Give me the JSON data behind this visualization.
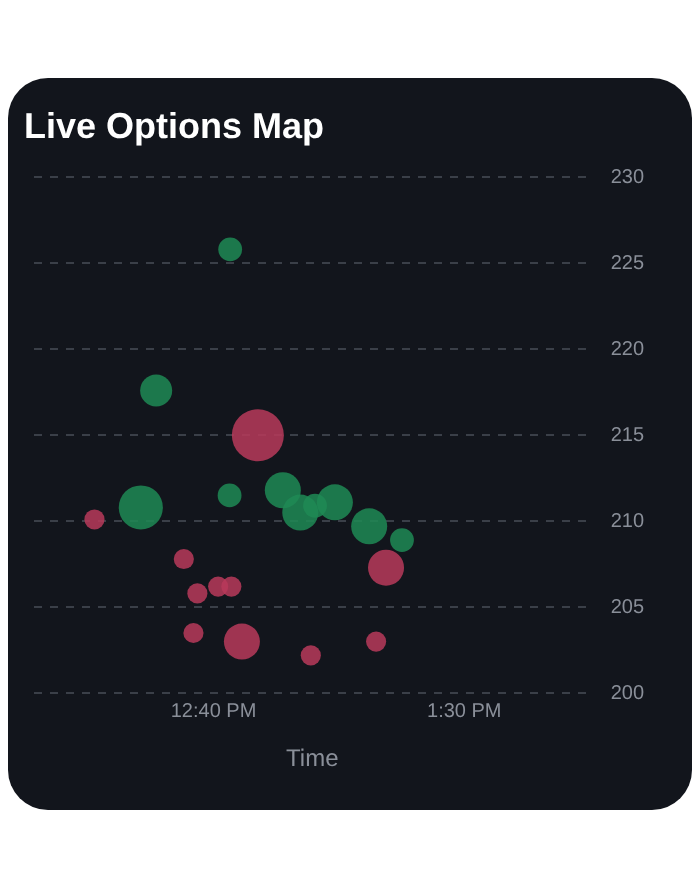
{
  "chart_data": {
    "type": "bubble",
    "title": "Live Options Map",
    "xlabel": "Time",
    "xlim": [
      12.07,
      13.92
    ],
    "xticks": [
      {
        "value": 12.6667,
        "label": "12:40 PM"
      },
      {
        "value": 13.5,
        "label": "1:30 PM"
      }
    ],
    "ylim": [
      200,
      230
    ],
    "yticks": [
      200,
      205,
      210,
      215,
      220,
      225,
      230
    ],
    "grid": "y",
    "legend": false,
    "series": [
      {
        "color": "#1f8a55",
        "x": [
          12.722,
          12.476,
          12.425,
          12.72,
          12.897,
          12.955,
          13.004,
          13.07,
          13.184,
          13.293
        ],
        "values": [
          225.8,
          217.6,
          210.8,
          211.5,
          211.8,
          210.5,
          210.9,
          211.1,
          209.7,
          208.9
        ],
        "sizes": [
          0.21,
          0.38,
          0.72,
          0.21,
          0.48,
          0.48,
          0.21,
          0.48,
          0.48,
          0.21
        ]
      },
      {
        "color": "#b8395a",
        "x": [
          12.271,
          12.814,
          13.24,
          12.568,
          12.613,
          12.682,
          12.726,
          12.6,
          12.761,
          12.99,
          13.207
        ],
        "values": [
          210.1,
          215.0,
          207.3,
          207.8,
          205.8,
          206.2,
          206.2,
          203.5,
          203.0,
          202.2,
          203.0
        ],
        "sizes": [
          0.15,
          1,
          0.48,
          0.15,
          0.15,
          0.15,
          0.15,
          0.15,
          0.48,
          0.15,
          0.15
        ]
      }
    ]
  }
}
